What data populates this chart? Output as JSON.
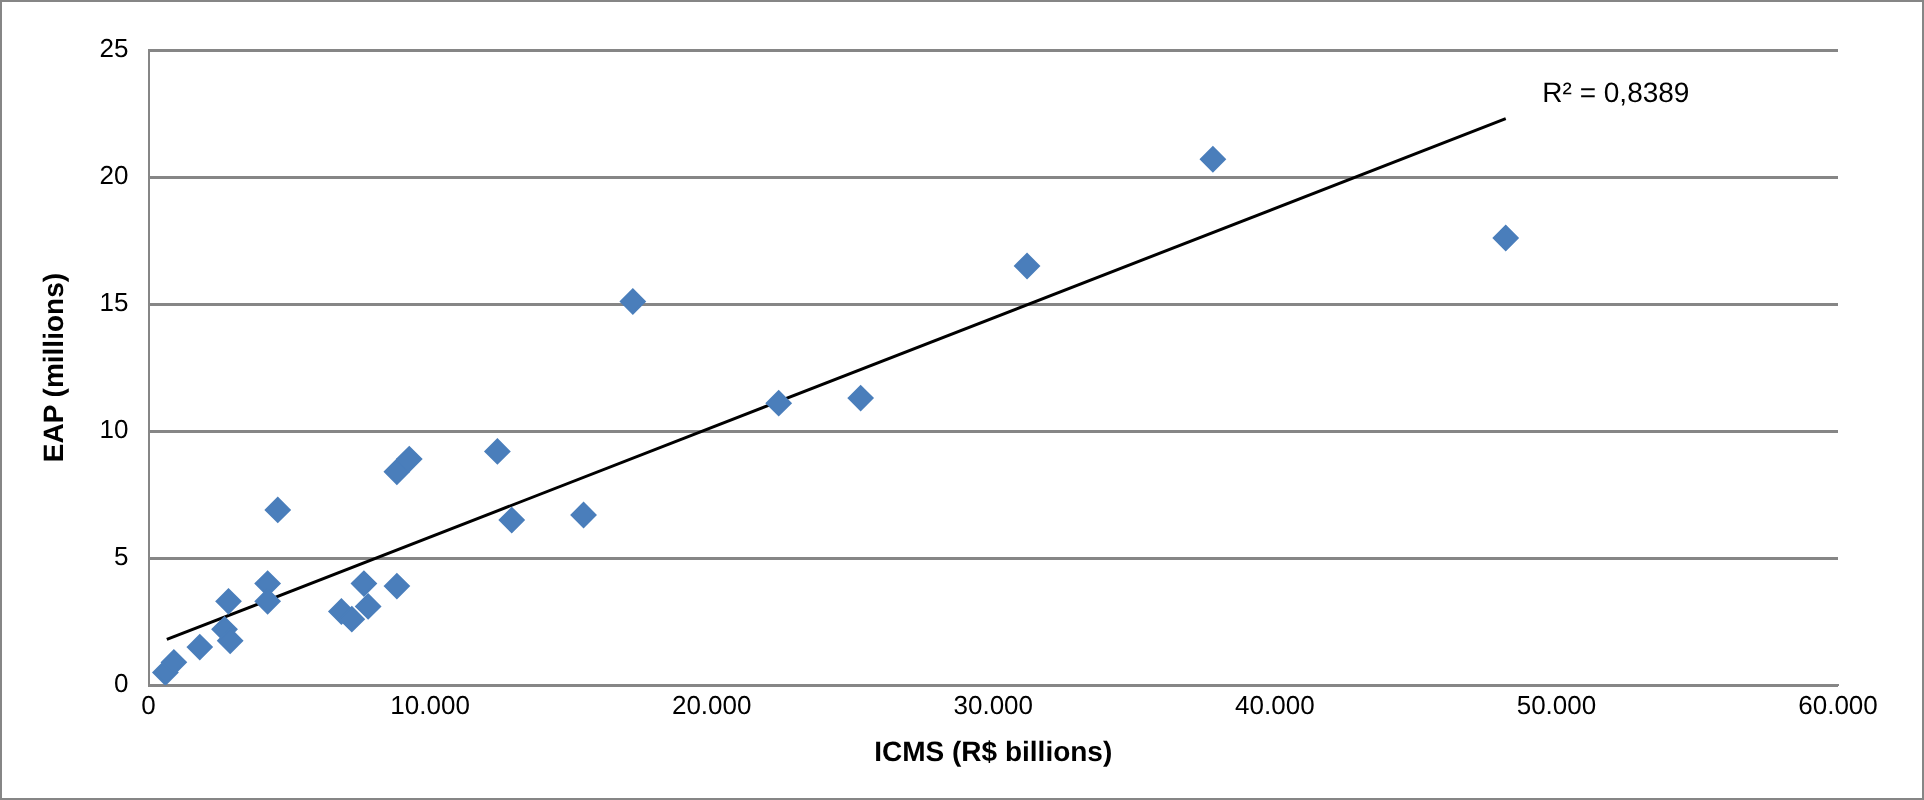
{
  "chart_data": {
    "type": "scatter",
    "xlabel": "ICMS (R$ billions)",
    "ylabel": "EAP (millions)",
    "xlim": [
      0,
      60000
    ],
    "xticks": [
      0,
      {
        "value": 10000,
        "label": "10.000"
      },
      {
        "value": 20000,
        "label": "20.000"
      },
      {
        "value": 30000,
        "label": "30.000"
      },
      {
        "value": 40000,
        "label": "40.000"
      },
      {
        "value": 50000,
        "label": "50.000"
      },
      {
        "value": 60000,
        "label": "60.000"
      }
    ],
    "ylim": [
      0,
      25
    ],
    "yticks": [
      0,
      5,
      10,
      15,
      20,
      25
    ],
    "grid": "y",
    "legend": false,
    "annotations": [
      "R² = 0,8389"
    ],
    "series": [
      {
        "marker": "diamond",
        "color": "#4a7ebb",
        "x": [
          600,
          900,
          1820,
          2700,
          2900,
          2840,
          4230,
          4230,
          4590,
          6850,
          7220,
          7650,
          7800,
          8820,
          8820,
          9260,
          12390,
          12900,
          15450,
          17200,
          22380,
          25290,
          31200,
          37800,
          48200
        ],
        "values": [
          0.5,
          0.9,
          1.5,
          2.2,
          1.75,
          3.3,
          4.0,
          3.3,
          6.9,
          2.9,
          2.6,
          4.0,
          3.1,
          3.9,
          8.4,
          8.9,
          9.2,
          6.5,
          6.7,
          15.1,
          11.1,
          11.3,
          16.5,
          20.7,
          17.6
        ]
      },
      {
        "type": "line",
        "marker": "none",
        "color": "#000000",
        "x": [
          650,
          48200
        ],
        "values": [
          1.8,
          22.3
        ]
      }
    ]
  }
}
